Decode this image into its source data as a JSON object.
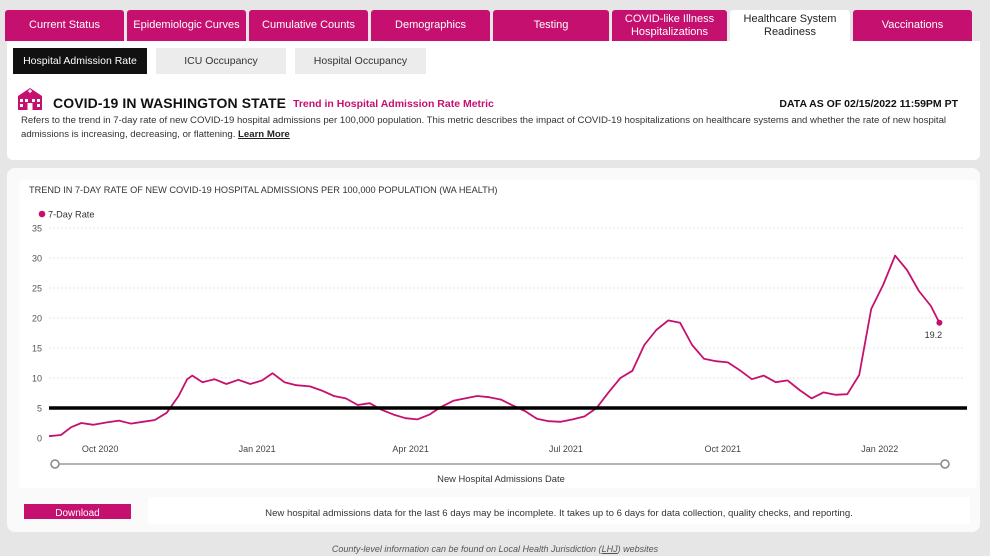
{
  "tabs": [
    {
      "label": "Current Status",
      "active": false
    },
    {
      "label": "Epidemiologic Curves",
      "active": false
    },
    {
      "label": "Cumulative Counts",
      "active": false
    },
    {
      "label": "Demographics",
      "active": false
    },
    {
      "label": "Testing",
      "active": false
    },
    {
      "label": "COVID-like Illness Hospitalizations",
      "active": false
    },
    {
      "label": "Healthcare System Readiness",
      "active": true
    },
    {
      "label": "Vaccinations",
      "active": false
    }
  ],
  "subtabs": [
    {
      "label": "Hospital Admission Rate",
      "active": true
    },
    {
      "label": "ICU Occupancy",
      "active": false
    },
    {
      "label": "Hospital Occupancy",
      "active": false
    }
  ],
  "header": {
    "title": "COVID-19 IN WASHINGTON STATE",
    "metric_title": "Trend in Hospital Admission Rate Metric",
    "data_as_of": "DATA AS OF 02/15/2022 11:59PM PT",
    "description": "Refers to the trend in 7-day rate of new COVID-19 hospital admissions per 100,000 population. This metric describes the impact of COVID-19 hospitalizations on healthcare systems and whether the rate of new hospital admissions is increasing, decreasing, or flattening.",
    "learn_more": "Learn More"
  },
  "colors": {
    "accent": "#c6106f",
    "threshold": "#000000",
    "grid": "#dcdcdc"
  },
  "chart_data": {
    "type": "line",
    "title": "TREND IN 7-DAY RATE OF NEW COVID-19 HOSPITAL ADMISSIONS PER 100,000 POPULATION (WA HEALTH)",
    "xlabel": "New Hospital Admissions Date",
    "ylabel": "",
    "legend": "top-left",
    "grid": true,
    "ylim": [
      0,
      35
    ],
    "yticks": [
      0,
      5,
      10,
      15,
      20,
      25,
      30,
      35
    ],
    "xlim": [
      "2020-09-01",
      "2022-02-20"
    ],
    "xticks": [
      {
        "date": "2020-10-01",
        "label": "Oct 2020"
      },
      {
        "date": "2021-01-01",
        "label": "Jan 2021"
      },
      {
        "date": "2021-04-01",
        "label": "Apr 2021"
      },
      {
        "date": "2021-07-01",
        "label": "Jul 2021"
      },
      {
        "date": "2021-10-01",
        "label": "Oct 2021"
      },
      {
        "date": "2022-01-01",
        "label": "Jan 2022"
      }
    ],
    "threshold": 5,
    "last_label": "19.2",
    "series": [
      {
        "name": "7-Day Rate",
        "points": [
          [
            "2020-09-01",
            0.3
          ],
          [
            "2020-09-08",
            0.5
          ],
          [
            "2020-09-14",
            1.8
          ],
          [
            "2020-09-20",
            2.5
          ],
          [
            "2020-09-27",
            2.2
          ],
          [
            "2020-10-05",
            2.6
          ],
          [
            "2020-10-12",
            2.9
          ],
          [
            "2020-10-19",
            2.4
          ],
          [
            "2020-10-26",
            2.7
          ],
          [
            "2020-11-02",
            3.0
          ],
          [
            "2020-11-09",
            4.2
          ],
          [
            "2020-11-16",
            7.0
          ],
          [
            "2020-11-21",
            9.8
          ],
          [
            "2020-11-24",
            10.4
          ],
          [
            "2020-11-30",
            9.3
          ],
          [
            "2020-12-07",
            9.8
          ],
          [
            "2020-12-14",
            9.0
          ],
          [
            "2020-12-21",
            9.7
          ],
          [
            "2020-12-28",
            9.0
          ],
          [
            "2021-01-04",
            9.6
          ],
          [
            "2021-01-10",
            10.8
          ],
          [
            "2021-01-17",
            9.3
          ],
          [
            "2021-01-24",
            8.8
          ],
          [
            "2021-02-01",
            8.6
          ],
          [
            "2021-02-08",
            7.9
          ],
          [
            "2021-02-15",
            7.0
          ],
          [
            "2021-02-22",
            6.6
          ],
          [
            "2021-03-01",
            5.5
          ],
          [
            "2021-03-08",
            5.8
          ],
          [
            "2021-03-15",
            4.7
          ],
          [
            "2021-03-22",
            3.9
          ],
          [
            "2021-03-29",
            3.3
          ],
          [
            "2021-04-05",
            3.1
          ],
          [
            "2021-04-12",
            3.9
          ],
          [
            "2021-04-19",
            5.2
          ],
          [
            "2021-04-26",
            6.2
          ],
          [
            "2021-05-03",
            6.6
          ],
          [
            "2021-05-10",
            7.0
          ],
          [
            "2021-05-17",
            6.8
          ],
          [
            "2021-05-24",
            6.4
          ],
          [
            "2021-05-31",
            5.4
          ],
          [
            "2021-06-07",
            4.5
          ],
          [
            "2021-06-14",
            3.2
          ],
          [
            "2021-06-21",
            2.8
          ],
          [
            "2021-06-28",
            2.7
          ],
          [
            "2021-07-05",
            3.1
          ],
          [
            "2021-07-12",
            3.6
          ],
          [
            "2021-07-19",
            5.0
          ],
          [
            "2021-07-26",
            7.6
          ],
          [
            "2021-08-02",
            10.0
          ],
          [
            "2021-08-09",
            11.2
          ],
          [
            "2021-08-16",
            15.5
          ],
          [
            "2021-08-23",
            18.0
          ],
          [
            "2021-08-30",
            19.6
          ],
          [
            "2021-09-06",
            19.2
          ],
          [
            "2021-09-13",
            15.5
          ],
          [
            "2021-09-20",
            13.2
          ],
          [
            "2021-09-27",
            12.8
          ],
          [
            "2021-10-04",
            12.6
          ],
          [
            "2021-10-11",
            11.3
          ],
          [
            "2021-10-18",
            9.8
          ],
          [
            "2021-10-25",
            10.4
          ],
          [
            "2021-11-01",
            9.3
          ],
          [
            "2021-11-08",
            9.6
          ],
          [
            "2021-11-15",
            8.0
          ],
          [
            "2021-11-22",
            6.6
          ],
          [
            "2021-11-29",
            7.6
          ],
          [
            "2021-12-06",
            7.2
          ],
          [
            "2021-12-13",
            7.3
          ],
          [
            "2021-12-20",
            10.5
          ],
          [
            "2021-12-27",
            21.5
          ],
          [
            "2022-01-03",
            25.5
          ],
          [
            "2022-01-10",
            30.4
          ],
          [
            "2022-01-17",
            28.0
          ],
          [
            "2022-01-24",
            24.5
          ],
          [
            "2022-01-31",
            22.0
          ],
          [
            "2022-02-05",
            19.2
          ]
        ]
      }
    ]
  },
  "download_label": "Download",
  "note": "New hospital admissions data for the last 6 days may be incomplete. It takes up to 6 days for data collection, quality checks, and reporting.",
  "footer": {
    "prefix": "County-level information can be found on Local Health Jurisdiction (",
    "lhj": "LHJ",
    "suffix": ") websites"
  }
}
